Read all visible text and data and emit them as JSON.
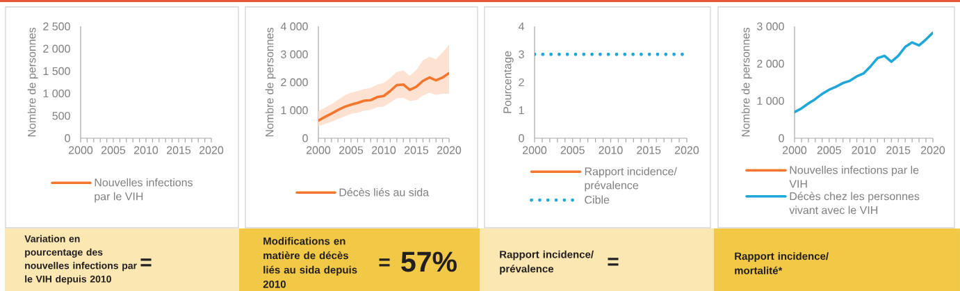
{
  "chart_data": [
    {
      "type": "line",
      "categories": [
        "2000",
        null,
        null,
        null,
        null,
        "2005",
        null,
        null,
        null,
        null,
        "2010",
        null,
        null,
        null,
        null,
        "2015",
        null,
        null,
        null,
        null,
        "2020"
      ],
      "series": [
        {
          "name": "Nouvelles infections par le VIH",
          "color": "#f4762d",
          "values": [
            null,
            null,
            null,
            null,
            null,
            null,
            null,
            null,
            null,
            null,
            null,
            null,
            null,
            null,
            null,
            null,
            null,
            null,
            null,
            null,
            null
          ]
        }
      ],
      "ylabel": "Nombre de personnes",
      "ylim": [
        0,
        2500
      ],
      "yticks": [
        0,
        500,
        {
          "value": 1000,
          "label": "1 000"
        },
        {
          "value": 1500,
          "label": "1 500"
        },
        {
          "value": 2000,
          "label": "2 000"
        },
        {
          "value": 2500,
          "label": "2 500"
        }
      ],
      "legend": "bottom",
      "marker": "none",
      "annotations": [
        "Variation en pourcentage des nouvelles infections par le VIH depuis 2010",
        "="
      ]
    },
    {
      "type": "line",
      "categories": [
        "2000",
        null,
        null,
        null,
        null,
        "2005",
        null,
        null,
        null,
        null,
        "2010",
        null,
        null,
        null,
        null,
        "2015",
        null,
        null,
        null,
        null,
        "2020"
      ],
      "series": [
        {
          "name": "Décès liés au sida",
          "color": "#f4762d",
          "values": [
            630,
            760,
            880,
            1010,
            1120,
            1200,
            1260,
            1340,
            1360,
            1470,
            1510,
            1690,
            1900,
            1920,
            1730,
            1840,
            2050,
            2170,
            2070,
            2170,
            2330
          ],
          "lower": [
            430,
            510,
            590,
            680,
            780,
            870,
            910,
            980,
            1010,
            1110,
            1130,
            1280,
            1430,
            1450,
            1330,
            1360,
            1530,
            1630,
            1550,
            1590,
            1590
          ],
          "upper": [
            970,
            1090,
            1220,
            1370,
            1530,
            1630,
            1680,
            1760,
            1800,
            1910,
            1980,
            2150,
            2370,
            2420,
            2230,
            2450,
            2780,
            2920,
            2820,
            3070,
            3340
          ]
        }
      ],
      "ylabel": "Nombre de personnes",
      "ylim": [
        0,
        4000
      ],
      "yticks": [
        0,
        {
          "value": 1000,
          "label": "1 000"
        },
        {
          "value": 2000,
          "label": "2 000"
        },
        {
          "value": 3000,
          "label": "3 000"
        },
        {
          "value": 4000,
          "label": "4 000"
        }
      ],
      "legend": "bottom",
      "marker": "none",
      "annotations": [
        "Modifications en matière de décès liés au sida depuis 2010",
        "=",
        "57%"
      ]
    },
    {
      "type": "line",
      "categories": [
        "2000",
        null,
        null,
        null,
        null,
        "2005",
        null,
        null,
        null,
        null,
        "2010",
        null,
        null,
        null,
        null,
        "2015",
        null,
        null,
        null,
        null,
        "2020"
      ],
      "series": [
        {
          "name": "Rapport incidence/prévalence",
          "color": "#f4762d",
          "values": [
            null,
            null,
            null,
            null,
            null,
            null,
            null,
            null,
            null,
            null,
            null,
            null,
            null,
            null,
            null,
            null,
            null,
            null,
            null,
            null,
            null
          ]
        },
        {
          "name": "Cible",
          "color": "#1ea7d8",
          "values": [
            3,
            3,
            3,
            3,
            3,
            3,
            3,
            3,
            3,
            3,
            3,
            3,
            3,
            3,
            3,
            3,
            3,
            3,
            3,
            3,
            3
          ],
          "line_style": "dotted"
        }
      ],
      "ylabel": "Pourcentage",
      "ylim": [
        0,
        4
      ],
      "yticks": [
        0,
        1,
        2,
        3,
        4
      ],
      "legend": "bottom",
      "marker": "none",
      "annotations": [
        "Rapport incidence/prévalence",
        "="
      ]
    },
    {
      "type": "line",
      "categories": [
        "2000",
        null,
        null,
        null,
        null,
        "2005",
        null,
        null,
        null,
        null,
        "2010",
        null,
        null,
        null,
        null,
        "2015",
        null,
        null,
        null,
        null,
        "2020"
      ],
      "series": [
        {
          "name": "Nouvelles infections par le VIH",
          "color": "#f4762d",
          "values": [
            null,
            null,
            null,
            null,
            null,
            null,
            null,
            null,
            null,
            null,
            null,
            null,
            null,
            null,
            null,
            null,
            null,
            null,
            null,
            null,
            null
          ]
        },
        {
          "name": "Décès chez les personnes vivant avec le VIH",
          "color": "#1ea7d8",
          "values": [
            700,
            800,
            930,
            1050,
            1190,
            1300,
            1380,
            1480,
            1540,
            1660,
            1740,
            1930,
            2150,
            2210,
            2050,
            2210,
            2450,
            2570,
            2490,
            2650,
            2830
          ]
        }
      ],
      "ylabel": "Nombre de personnes",
      "ylim": [
        0,
        3000
      ],
      "yticks": [
        0,
        {
          "value": 1000,
          "label": "1 000"
        },
        {
          "value": 2000,
          "label": "2 000"
        },
        {
          "value": 3000,
          "label": "3 000"
        }
      ],
      "legend": "bottom",
      "marker": "none",
      "annotations": [
        "Rapport incidence/mortalité*"
      ]
    }
  ]
}
